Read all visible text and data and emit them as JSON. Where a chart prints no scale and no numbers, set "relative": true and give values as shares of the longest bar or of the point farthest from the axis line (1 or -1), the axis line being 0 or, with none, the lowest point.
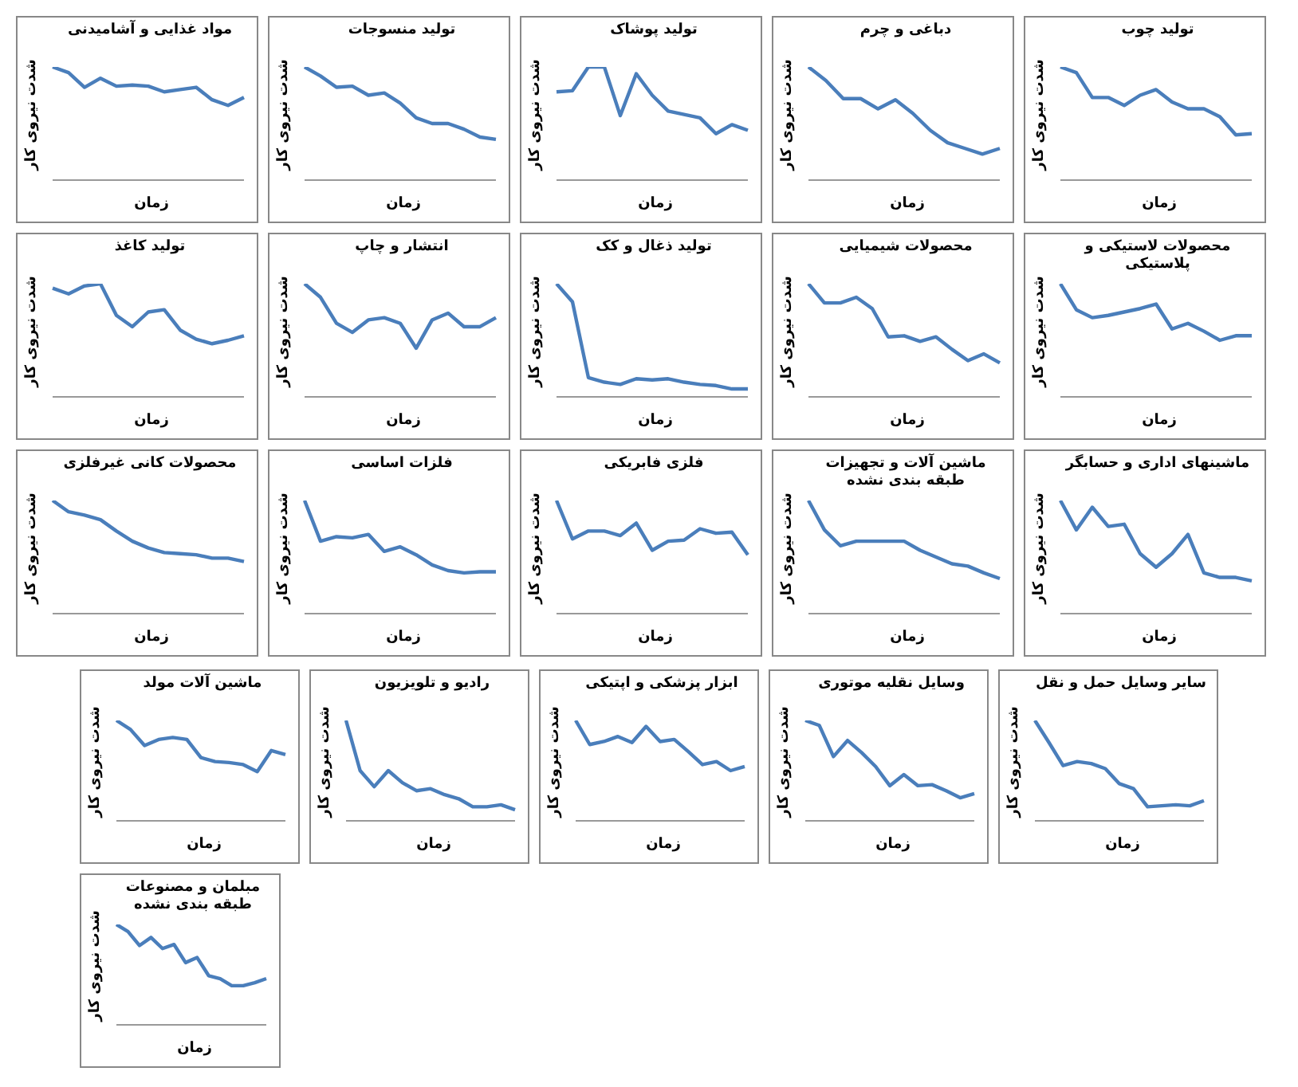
{
  "chart_data": [
    {
      "type": "line",
      "relative": true,
      "title": "مواد غذایی و آشامیدنی",
      "xlabel": "زمان",
      "ylabel": "شدت نیروی کار",
      "legend": false,
      "marker": "none",
      "categories": [
        null,
        null,
        null,
        null,
        null,
        null,
        null,
        null,
        null,
        null,
        null,
        null,
        null
      ],
      "series": [
        {
          "color": "#4a7ebb",
          "values": [
            1,
            0.95,
            0.82,
            0.9,
            0.83,
            0.84,
            0.83,
            0.78,
            0.8,
            0.82,
            0.71,
            0.66,
            0.73
          ]
        }
      ]
    },
    {
      "type": "line",
      "relative": true,
      "title": "تولید منسوجات",
      "xlabel": "زمان",
      "ylabel": "شدت نیروی کار",
      "legend": false,
      "marker": "none",
      "categories": [
        null,
        null,
        null,
        null,
        null,
        null,
        null,
        null,
        null,
        null,
        null,
        null,
        null
      ],
      "series": [
        {
          "color": "#4a7ebb",
          "values": [
            1,
            0.92,
            0.82,
            0.83,
            0.75,
            0.77,
            0.68,
            0.55,
            0.5,
            0.5,
            0.45,
            0.38,
            0.36
          ]
        }
      ]
    },
    {
      "type": "line",
      "relative": true,
      "title": "تولید پوشاک",
      "xlabel": "زمان",
      "ylabel": "شدت نیروی کار",
      "legend": false,
      "marker": "none",
      "categories": [
        null,
        null,
        null,
        null,
        null,
        null,
        null,
        null,
        null,
        null,
        null,
        null,
        null
      ],
      "series": [
        {
          "color": "#4a7ebb",
          "values": [
            0.78,
            0.79,
            1,
            1,
            0.57,
            0.94,
            0.75,
            0.61,
            0.58,
            0.55,
            0.41,
            0.49,
            0.44
          ]
        }
      ]
    },
    {
      "type": "line",
      "relative": true,
      "title": "دباغی و چرم",
      "xlabel": "زمان",
      "ylabel": "شدت نیروی کار",
      "legend": false,
      "marker": "none",
      "categories": [
        null,
        null,
        null,
        null,
        null,
        null,
        null,
        null,
        null,
        null,
        null,
        null
      ],
      "series": [
        {
          "color": "#4a7ebb",
          "values": [
            1,
            0.88,
            0.72,
            0.72,
            0.63,
            0.71,
            0.59,
            0.44,
            0.33,
            0.28,
            0.23,
            0.28
          ]
        }
      ]
    },
    {
      "type": "line",
      "relative": true,
      "title": "تولید چوب",
      "xlabel": "زمان",
      "ylabel": "شدت نیروی کار",
      "legend": false,
      "marker": "none",
      "categories": [
        null,
        null,
        null,
        null,
        null,
        null,
        null,
        null,
        null,
        null,
        null,
        null,
        null
      ],
      "series": [
        {
          "color": "#4a7ebb",
          "values": [
            1,
            0.95,
            0.73,
            0.73,
            0.66,
            0.75,
            0.8,
            0.69,
            0.63,
            0.63,
            0.56,
            0.4,
            0.41
          ]
        }
      ]
    },
    {
      "type": "line",
      "relative": true,
      "title": "تولید کاغذ",
      "xlabel": "زمان",
      "ylabel": "شدت نیروی کار",
      "legend": false,
      "marker": "none",
      "categories": [
        null,
        null,
        null,
        null,
        null,
        null,
        null,
        null,
        null,
        null,
        null,
        null,
        null
      ],
      "series": [
        {
          "color": "#4a7ebb",
          "values": [
            0.96,
            0.91,
            0.98,
            1,
            0.72,
            0.62,
            0.75,
            0.77,
            0.59,
            0.51,
            0.47,
            0.5,
            0.54
          ]
        }
      ]
    },
    {
      "type": "line",
      "relative": true,
      "title": "انتشار و چاپ",
      "xlabel": "زمان",
      "ylabel": "شدت نیروی کار",
      "legend": false,
      "marker": "none",
      "categories": [
        null,
        null,
        null,
        null,
        null,
        null,
        null,
        null,
        null,
        null,
        null,
        null,
        null
      ],
      "series": [
        {
          "color": "#4a7ebb",
          "values": [
            1,
            0.88,
            0.65,
            0.57,
            0.68,
            0.7,
            0.65,
            0.43,
            0.68,
            0.74,
            0.62,
            0.62,
            0.7
          ]
        }
      ]
    },
    {
      "type": "line",
      "relative": true,
      "title": "تولید ذغال و کک",
      "xlabel": "زمان",
      "ylabel": "شدت نیروی کار",
      "legend": false,
      "marker": "none",
      "categories": [
        null,
        null,
        null,
        null,
        null,
        null,
        null,
        null,
        null,
        null,
        null,
        null,
        null
      ],
      "series": [
        {
          "color": "#4a7ebb",
          "values": [
            1,
            0.84,
            0.17,
            0.13,
            0.11,
            0.16,
            0.15,
            0.16,
            0.13,
            0.11,
            0.1,
            0.07,
            0.07
          ]
        }
      ]
    },
    {
      "type": "line",
      "relative": true,
      "title": "محصولات شیمیایی",
      "xlabel": "زمان",
      "ylabel": "شدت نیروی کار",
      "legend": false,
      "marker": "none",
      "categories": [
        null,
        null,
        null,
        null,
        null,
        null,
        null,
        null,
        null,
        null,
        null,
        null,
        null
      ],
      "series": [
        {
          "color": "#4a7ebb",
          "values": [
            1,
            0.83,
            0.83,
            0.88,
            0.78,
            0.53,
            0.54,
            0.49,
            0.53,
            0.42,
            0.32,
            0.38,
            0.3
          ]
        }
      ]
    },
    {
      "type": "line",
      "relative": true,
      "title": "محصولات لاستیکی و پلاستیکی",
      "xlabel": "زمان",
      "ylabel": "شدت نیروی کار",
      "legend": false,
      "marker": "none",
      "categories": [
        null,
        null,
        null,
        null,
        null,
        null,
        null,
        null,
        null,
        null,
        null,
        null,
        null
      ],
      "series": [
        {
          "color": "#4a7ebb",
          "values": [
            1,
            0.77,
            0.7,
            0.72,
            0.75,
            0.78,
            0.82,
            0.6,
            0.65,
            0.58,
            0.5,
            0.54,
            0.54
          ]
        }
      ]
    },
    {
      "type": "line",
      "relative": true,
      "title": "محصولات کانی غیرفلزی",
      "xlabel": "زمان",
      "ylabel": "شدت نیروی کار",
      "legend": false,
      "marker": "none",
      "categories": [
        null,
        null,
        null,
        null,
        null,
        null,
        null,
        null,
        null,
        null,
        null,
        null,
        null
      ],
      "series": [
        {
          "color": "#4a7ebb",
          "values": [
            1,
            0.9,
            0.87,
            0.83,
            0.73,
            0.64,
            0.58,
            0.54,
            0.53,
            0.52,
            0.49,
            0.49,
            0.46
          ]
        }
      ]
    },
    {
      "type": "line",
      "relative": true,
      "title": "فلزات اساسی",
      "xlabel": "زمان",
      "ylabel": "شدت نیروی کار",
      "legend": false,
      "marker": "none",
      "categories": [
        null,
        null,
        null,
        null,
        null,
        null,
        null,
        null,
        null,
        null,
        null,
        null,
        null
      ],
      "series": [
        {
          "color": "#4a7ebb",
          "values": [
            1,
            0.64,
            0.68,
            0.67,
            0.7,
            0.55,
            0.59,
            0.52,
            0.43,
            0.38,
            0.36,
            0.37,
            0.37
          ]
        }
      ]
    },
    {
      "type": "line",
      "relative": true,
      "title": "فلزی فابریکی",
      "xlabel": "زمان",
      "ylabel": "شدت نیروی کار",
      "legend": false,
      "marker": "none",
      "categories": [
        null,
        null,
        null,
        null,
        null,
        null,
        null,
        null,
        null,
        null,
        null,
        null,
        null
      ],
      "series": [
        {
          "color": "#4a7ebb",
          "values": [
            1,
            0.66,
            0.73,
            0.73,
            0.69,
            0.8,
            0.56,
            0.64,
            0.65,
            0.75,
            0.71,
            0.72,
            0.52
          ]
        }
      ]
    },
    {
      "type": "line",
      "relative": true,
      "title": "ماشین آلات و تجهیزات طبقه بندی نشده",
      "xlabel": "زمان",
      "ylabel": "شدت نیروی کار",
      "legend": false,
      "marker": "none",
      "categories": [
        null,
        null,
        null,
        null,
        null,
        null,
        null,
        null,
        null,
        null,
        null,
        null,
        null
      ],
      "series": [
        {
          "color": "#4a7ebb",
          "values": [
            1,
            0.74,
            0.6,
            0.64,
            0.64,
            0.64,
            0.64,
            0.56,
            0.5,
            0.44,
            0.42,
            0.36,
            0.31
          ]
        }
      ]
    },
    {
      "type": "line",
      "relative": true,
      "title": "ماشینهای اداری و حسابگر",
      "xlabel": "زمان",
      "ylabel": "شدت نیروی کار",
      "legend": false,
      "marker": "none",
      "categories": [
        null,
        null,
        null,
        null,
        null,
        null,
        null,
        null,
        null,
        null,
        null,
        null,
        null
      ],
      "series": [
        {
          "color": "#4a7ebb",
          "values": [
            1,
            0.74,
            0.94,
            0.77,
            0.79,
            0.53,
            0.41,
            0.53,
            0.7,
            0.36,
            0.32,
            0.32,
            0.29
          ]
        }
      ]
    },
    {
      "type": "line",
      "relative": true,
      "title": "ماشین آلات مولد",
      "xlabel": "زمان",
      "ylabel": "شدت نیروی کار",
      "legend": false,
      "marker": "none",
      "categories": [
        null,
        null,
        null,
        null,
        null,
        null,
        null,
        null,
        null,
        null,
        null,
        null,
        null
      ],
      "series": [
        {
          "color": "#4a7ebb",
          "values": [
            1,
            0.91,
            0.75,
            0.81,
            0.83,
            0.81,
            0.63,
            0.59,
            0.58,
            0.56,
            0.49,
            0.7,
            0.66
          ]
        }
      ]
    },
    {
      "type": "line",
      "relative": true,
      "title": "رادیو و تلویزیون",
      "xlabel": "زمان",
      "ylabel": "شدت نیروی کار",
      "legend": false,
      "marker": "none",
      "categories": [
        null,
        null,
        null,
        null,
        null,
        null,
        null,
        null,
        null,
        null,
        null,
        null,
        null
      ],
      "series": [
        {
          "color": "#4a7ebb",
          "values": [
            1,
            0.5,
            0.34,
            0.5,
            0.38,
            0.3,
            0.32,
            0.26,
            0.22,
            0.14,
            0.14,
            0.16,
            0.11
          ]
        }
      ]
    },
    {
      "type": "line",
      "relative": true,
      "title": "ابزار پزشکی و اپتیکی",
      "xlabel": "زمان",
      "ylabel": "شدت نیروی کار",
      "legend": false,
      "marker": "none",
      "categories": [
        null,
        null,
        null,
        null,
        null,
        null,
        null,
        null,
        null,
        null,
        null,
        null,
        null
      ],
      "series": [
        {
          "color": "#4a7ebb",
          "values": [
            1,
            0.76,
            0.79,
            0.84,
            0.78,
            0.94,
            0.79,
            0.81,
            0.69,
            0.56,
            0.59,
            0.5,
            0.54
          ]
        }
      ]
    },
    {
      "type": "line",
      "relative": true,
      "title": "وسایل نقلیه موتوری",
      "xlabel": "زمان",
      "ylabel": "شدت نیروی کار",
      "legend": false,
      "marker": "none",
      "categories": [
        null,
        null,
        null,
        null,
        null,
        null,
        null,
        null,
        null,
        null,
        null,
        null,
        null
      ],
      "series": [
        {
          "color": "#4a7ebb",
          "values": [
            1,
            0.95,
            0.64,
            0.8,
            0.68,
            0.54,
            0.35,
            0.46,
            0.35,
            0.36,
            0.3,
            0.23,
            0.27
          ]
        }
      ]
    },
    {
      "type": "line",
      "relative": true,
      "title": "سایر وسایل حمل و نقل",
      "xlabel": "زمان",
      "ylabel": "شدت نیروی کار",
      "legend": false,
      "marker": "none",
      "categories": [
        null,
        null,
        null,
        null,
        null,
        null,
        null,
        null,
        null,
        null,
        null,
        null,
        null
      ],
      "series": [
        {
          "color": "#4a7ebb",
          "values": [
            1,
            0.78,
            0.55,
            0.59,
            0.57,
            0.52,
            0.37,
            0.32,
            0.14,
            0.15,
            0.16,
            0.15,
            0.2
          ]
        }
      ]
    },
    {
      "type": "line",
      "relative": true,
      "title": "مبلمان و مصنوعات طبقه بندی نشده",
      "xlabel": "زمان",
      "ylabel": "شدت نیروی کار",
      "legend": false,
      "marker": "none",
      "categories": [
        null,
        null,
        null,
        null,
        null,
        null,
        null,
        null,
        null,
        null,
        null,
        null,
        null,
        null
      ],
      "series": [
        {
          "color": "#4a7ebb",
          "values": [
            1,
            0.93,
            0.79,
            0.87,
            0.76,
            0.8,
            0.62,
            0.67,
            0.49,
            0.46,
            0.39,
            0.39,
            0.42,
            0.46
          ]
        }
      ]
    }
  ]
}
